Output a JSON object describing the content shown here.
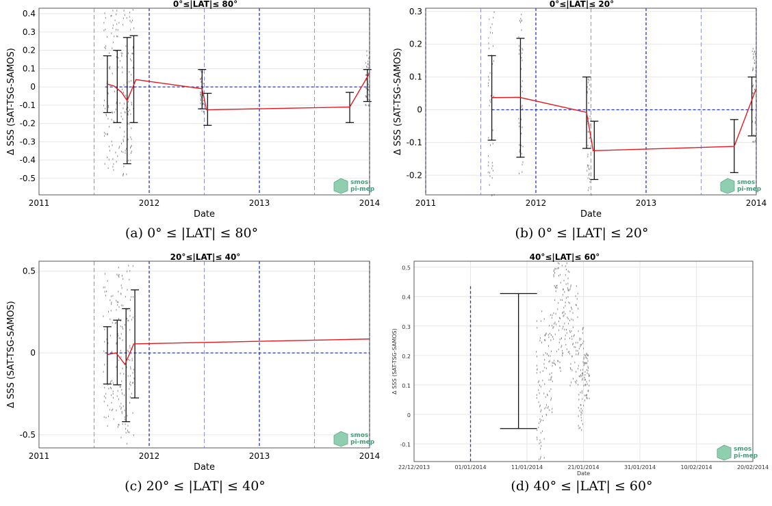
{
  "chart_data": [
    {
      "type": "line",
      "title": "0°≤|LAT|≤ 80°",
      "xlabel": "Date",
      "ylabel": "Δ SSS (SAT-TSG-SAMOS)",
      "x_tick_labels": [
        "2011",
        "2012",
        "2013",
        "2014"
      ],
      "y_tick_labels": [
        "0.4",
        "0.3",
        "0.2",
        "0.1",
        "0",
        "-0.1",
        "-0.2",
        "-0.3",
        "-0.4",
        "-0.5"
      ],
      "xlim": [
        2011.0,
        2014.0
      ],
      "ylim": [
        -0.59,
        0.43
      ],
      "grid": true,
      "mean_series": {
        "x": [
          2011.62,
          2011.68,
          2011.75,
          2011.8,
          2011.88,
          2012.48,
          2012.52,
          2013.82,
          2014.0
        ],
        "y": [
          0.015,
          0.005,
          -0.03,
          -0.075,
          0.04,
          -0.01,
          -0.125,
          -0.11,
          0.075
        ]
      },
      "error_bars": [
        {
          "x": 2011.62,
          "low": -0.14,
          "high": 0.17
        },
        {
          "x": 2011.71,
          "low": -0.195,
          "high": 0.2
        },
        {
          "x": 2011.8,
          "low": -0.42,
          "high": 0.27
        },
        {
          "x": 2011.86,
          "low": -0.195,
          "high": 0.28
        },
        {
          "x": 2012.48,
          "low": -0.12,
          "high": 0.095
        },
        {
          "x": 2012.53,
          "low": -0.21,
          "high": -0.035
        },
        {
          "x": 2013.82,
          "low": -0.195,
          "high": -0.03
        },
        {
          "x": 2013.98,
          "low": -0.08,
          "high": 0.095
        }
      ],
      "zero_line": 0,
      "vertical_dashed": [
        2011.5,
        2012.0,
        2012.5,
        2013.0,
        2013.5,
        2014.0
      ],
      "logo": [
        "smos",
        "pi-mep"
      ],
      "caption": "(a) 0° ≤ |LAT| ≤ 80°"
    },
    {
      "type": "line",
      "title": "0°≤|LAT|≤ 20°",
      "xlabel": "Date",
      "ylabel": "Δ SSS (SAT-TSG-SAMOS)",
      "x_tick_labels": [
        "2011",
        "2012",
        "2013",
        "2014"
      ],
      "y_tick_labels": [
        "0.3",
        "0.2",
        "0.1",
        "0",
        "-0.1",
        "-0.2"
      ],
      "xlim": [
        2011.0,
        2014.0
      ],
      "ylim": [
        -0.26,
        0.31
      ],
      "grid": true,
      "mean_series": {
        "x": [
          2011.6,
          2011.85,
          2012.46,
          2012.52,
          2013.8,
          2014.0
        ],
        "y": [
          0.037,
          0.038,
          -0.008,
          -0.125,
          -0.112,
          0.065
        ]
      },
      "error_bars": [
        {
          "x": 2011.6,
          "low": -0.093,
          "high": 0.165
        },
        {
          "x": 2011.86,
          "low": -0.145,
          "high": 0.218
        },
        {
          "x": 2012.46,
          "low": -0.118,
          "high": 0.1
        },
        {
          "x": 2012.53,
          "low": -0.213,
          "high": -0.035
        },
        {
          "x": 2013.8,
          "low": -0.192,
          "high": -0.03
        },
        {
          "x": 2013.96,
          "low": -0.08,
          "high": 0.1
        }
      ],
      "zero_line": 0,
      "vertical_dashed": [
        2011.0,
        2011.5,
        2012.0,
        2012.5,
        2013.0,
        2013.5,
        2014.0
      ],
      "logo": [
        "smos",
        "pi-mep"
      ],
      "caption": "(b) 0° ≤ |LAT| ≤ 20°"
    },
    {
      "type": "line",
      "title": "20°≤|LAT|≤ 40°",
      "xlabel": "Date",
      "ylabel": "Δ SSS (SAT-TSG-SAMOS)",
      "x_tick_labels": [
        "2011",
        "2012",
        "2013",
        "2014"
      ],
      "y_tick_labels": [
        "0.5",
        "0",
        "-0.5"
      ],
      "xlim": [
        2011.0,
        2014.0
      ],
      "ylim": [
        -0.58,
        0.56
      ],
      "grid": true,
      "mean_series": {
        "x": [
          2011.62,
          2011.7,
          2011.78,
          2011.86,
          2014.0
        ],
        "y": [
          -0.01,
          0.0,
          -0.07,
          0.055,
          0.085
        ]
      },
      "error_bars": [
        {
          "x": 2011.62,
          "low": -0.19,
          "high": 0.16
        },
        {
          "x": 2011.71,
          "low": -0.195,
          "high": 0.2
        },
        {
          "x": 2011.79,
          "low": -0.42,
          "high": 0.27
        },
        {
          "x": 2011.87,
          "low": -0.275,
          "high": 0.385
        }
      ],
      "zero_line": 0,
      "vertical_dashed": [
        2011.5,
        2012.0,
        2012.5,
        2013.0,
        2013.5,
        2014.0
      ],
      "logo": [
        "smos",
        "pi-mep"
      ],
      "caption": "(c) 20° ≤ |LAT| ≤ 40°"
    },
    {
      "type": "scatter",
      "title": "40°≤|LAT|≤ 60°",
      "xlabel": "Date",
      "ylabel": "Δ SSS (SAT-TSG-SAMOS)",
      "x_tick_labels": [
        "22/12/2013",
        "01/01/2014",
        "11/01/2014",
        "21/01/2014",
        "31/01/2014",
        "10/02/2014",
        "20/02/2014"
      ],
      "y_tick_labels": [
        "0.5",
        "0.4",
        "0.3",
        "0.2",
        "0.1",
        "0",
        "-0.1"
      ],
      "xlim": [
        0,
        60
      ],
      "ylim": [
        -0.16,
        0.52
      ],
      "grid": true,
      "error_bars": [
        {
          "x": 18.5,
          "low": -0.048,
          "high": 0.41
        }
      ],
      "vertical_dashed": [
        10
      ],
      "logo": [
        "smos",
        "pi-mep"
      ],
      "caption": "(d) 40° ≤ |LAT| ≤ 60°"
    }
  ]
}
